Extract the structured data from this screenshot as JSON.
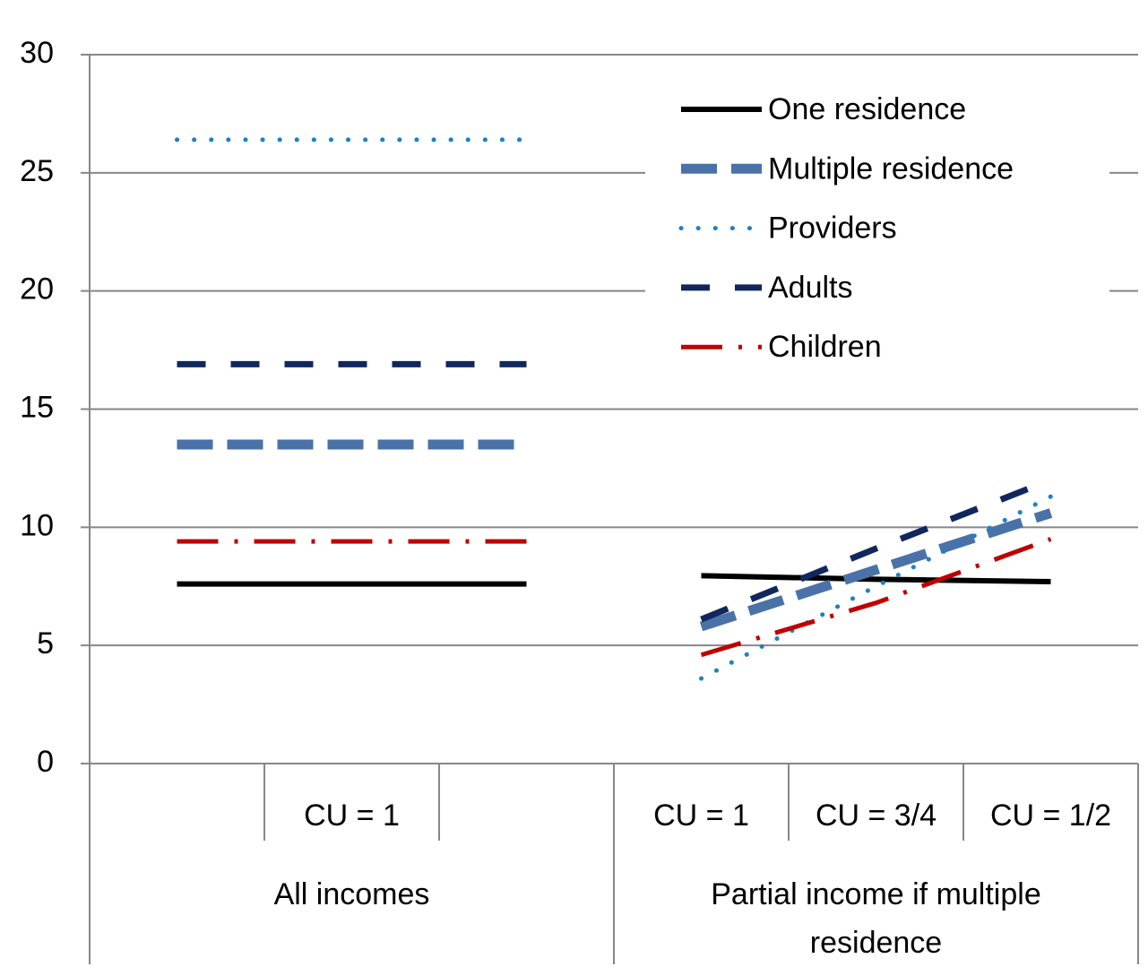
{
  "chart_data": {
    "type": "line",
    "groups": [
      {
        "name": "All incomes",
        "categories": [
          null,
          "CU = 1",
          null
        ]
      },
      {
        "name": "Partial income if multiple residence",
        "categories": [
          "CU = 1",
          "CU = 3/4",
          "CU = 1/2"
        ]
      }
    ],
    "series": [
      {
        "name": "One residence",
        "color": "#000000",
        "style": "solid",
        "values": [
          7.6,
          7.6,
          7.6,
          7.95,
          7.8,
          7.7
        ]
      },
      {
        "name": "Multiple residence",
        "color": "#4a72a8",
        "style": "dashed-wide",
        "values": [
          13.5,
          13.5,
          13.5,
          5.8,
          8.2,
          10.6
        ]
      },
      {
        "name": "Providers",
        "color": "#1f7fc6",
        "style": "dotted",
        "values": [
          26.4,
          26.4,
          26.4,
          3.6,
          7.5,
          11.3
        ]
      },
      {
        "name": "Adults",
        "color": "#10275e",
        "style": "dashed",
        "values": [
          16.9,
          16.9,
          16.9,
          6.1,
          9.1,
          12.0
        ]
      },
      {
        "name": "Children",
        "color": "#c00000",
        "style": "dash-dot",
        "values": [
          9.4,
          9.4,
          9.4,
          4.6,
          6.8,
          9.5
        ]
      }
    ],
    "ylim": [
      0,
      30
    ],
    "yticks": [
      0,
      5,
      10,
      15,
      20,
      25,
      30
    ],
    "grid": true,
    "legend": "top-right"
  }
}
